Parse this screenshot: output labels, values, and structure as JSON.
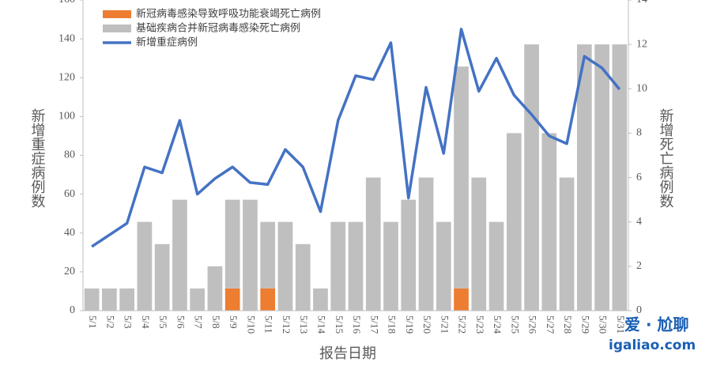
{
  "chart_data": {
    "type": "combo",
    "stacked": true,
    "xlabel": "报告日期",
    "ylabel": "新增重症病例数",
    "y2label": "新增死亡病例数",
    "categories": [
      "5/1",
      "5/2",
      "5/3",
      "5/4",
      "5/5",
      "5/6",
      "5/7",
      "5/8",
      "5/9",
      "5/10",
      "5/11",
      "5/12",
      "5/13",
      "5/14",
      "5/15",
      "5/16",
      "5/17",
      "5/18",
      "5/19",
      "5/20",
      "5/21",
      "5/22",
      "5/23",
      "5/24",
      "5/25",
      "5/26",
      "5/27",
      "5/28",
      "5/29",
      "5/30",
      "5/31"
    ],
    "series": [
      {
        "name": "新冠病毒感染导致呼吸功能衰竭死亡病例",
        "type": "bar",
        "axis": "y2",
        "color": "#ed7d31",
        "values": [
          0,
          0,
          0,
          0,
          0,
          0,
          0,
          0,
          1,
          0,
          1,
          0,
          0,
          0,
          0,
          0,
          0,
          0,
          0,
          0,
          0,
          1,
          0,
          0,
          0,
          0,
          0,
          0,
          0,
          0,
          0
        ]
      },
      {
        "name": "基础疾病合并新冠病毒感染死亡病例",
        "type": "bar",
        "axis": "y2",
        "color": "#bfbfbf",
        "values": [
          1,
          1,
          1,
          4,
          3,
          5,
          1,
          2,
          4,
          5,
          3,
          4,
          3,
          1,
          4,
          4,
          6,
          4,
          5,
          6,
          4,
          10,
          6,
          4,
          8,
          12,
          8,
          6,
          12,
          12,
          12
        ]
      },
      {
        "name": "新增重症病例",
        "type": "line",
        "axis": "y",
        "color": "#4472c4",
        "values": [
          33,
          39,
          45,
          74,
          71,
          98,
          60,
          68,
          74,
          66,
          65,
          83,
          74,
          51,
          98,
          121,
          119,
          138,
          58,
          115,
          81,
          145,
          113,
          130,
          111,
          101,
          90,
          86,
          131,
          125,
          114
        ]
      }
    ],
    "ylim": [
      0,
      160
    ],
    "yticks": [
      0,
      20,
      40,
      60,
      80,
      100,
      120,
      140,
      160
    ],
    "y2lim": [
      0,
      14
    ],
    "y2ticks": [
      0,
      2,
      4,
      6,
      8,
      10,
      12,
      14
    ],
    "legend": "top-left",
    "watermark": [
      "爱 · 尬聊",
      "igaliao.com"
    ]
  }
}
